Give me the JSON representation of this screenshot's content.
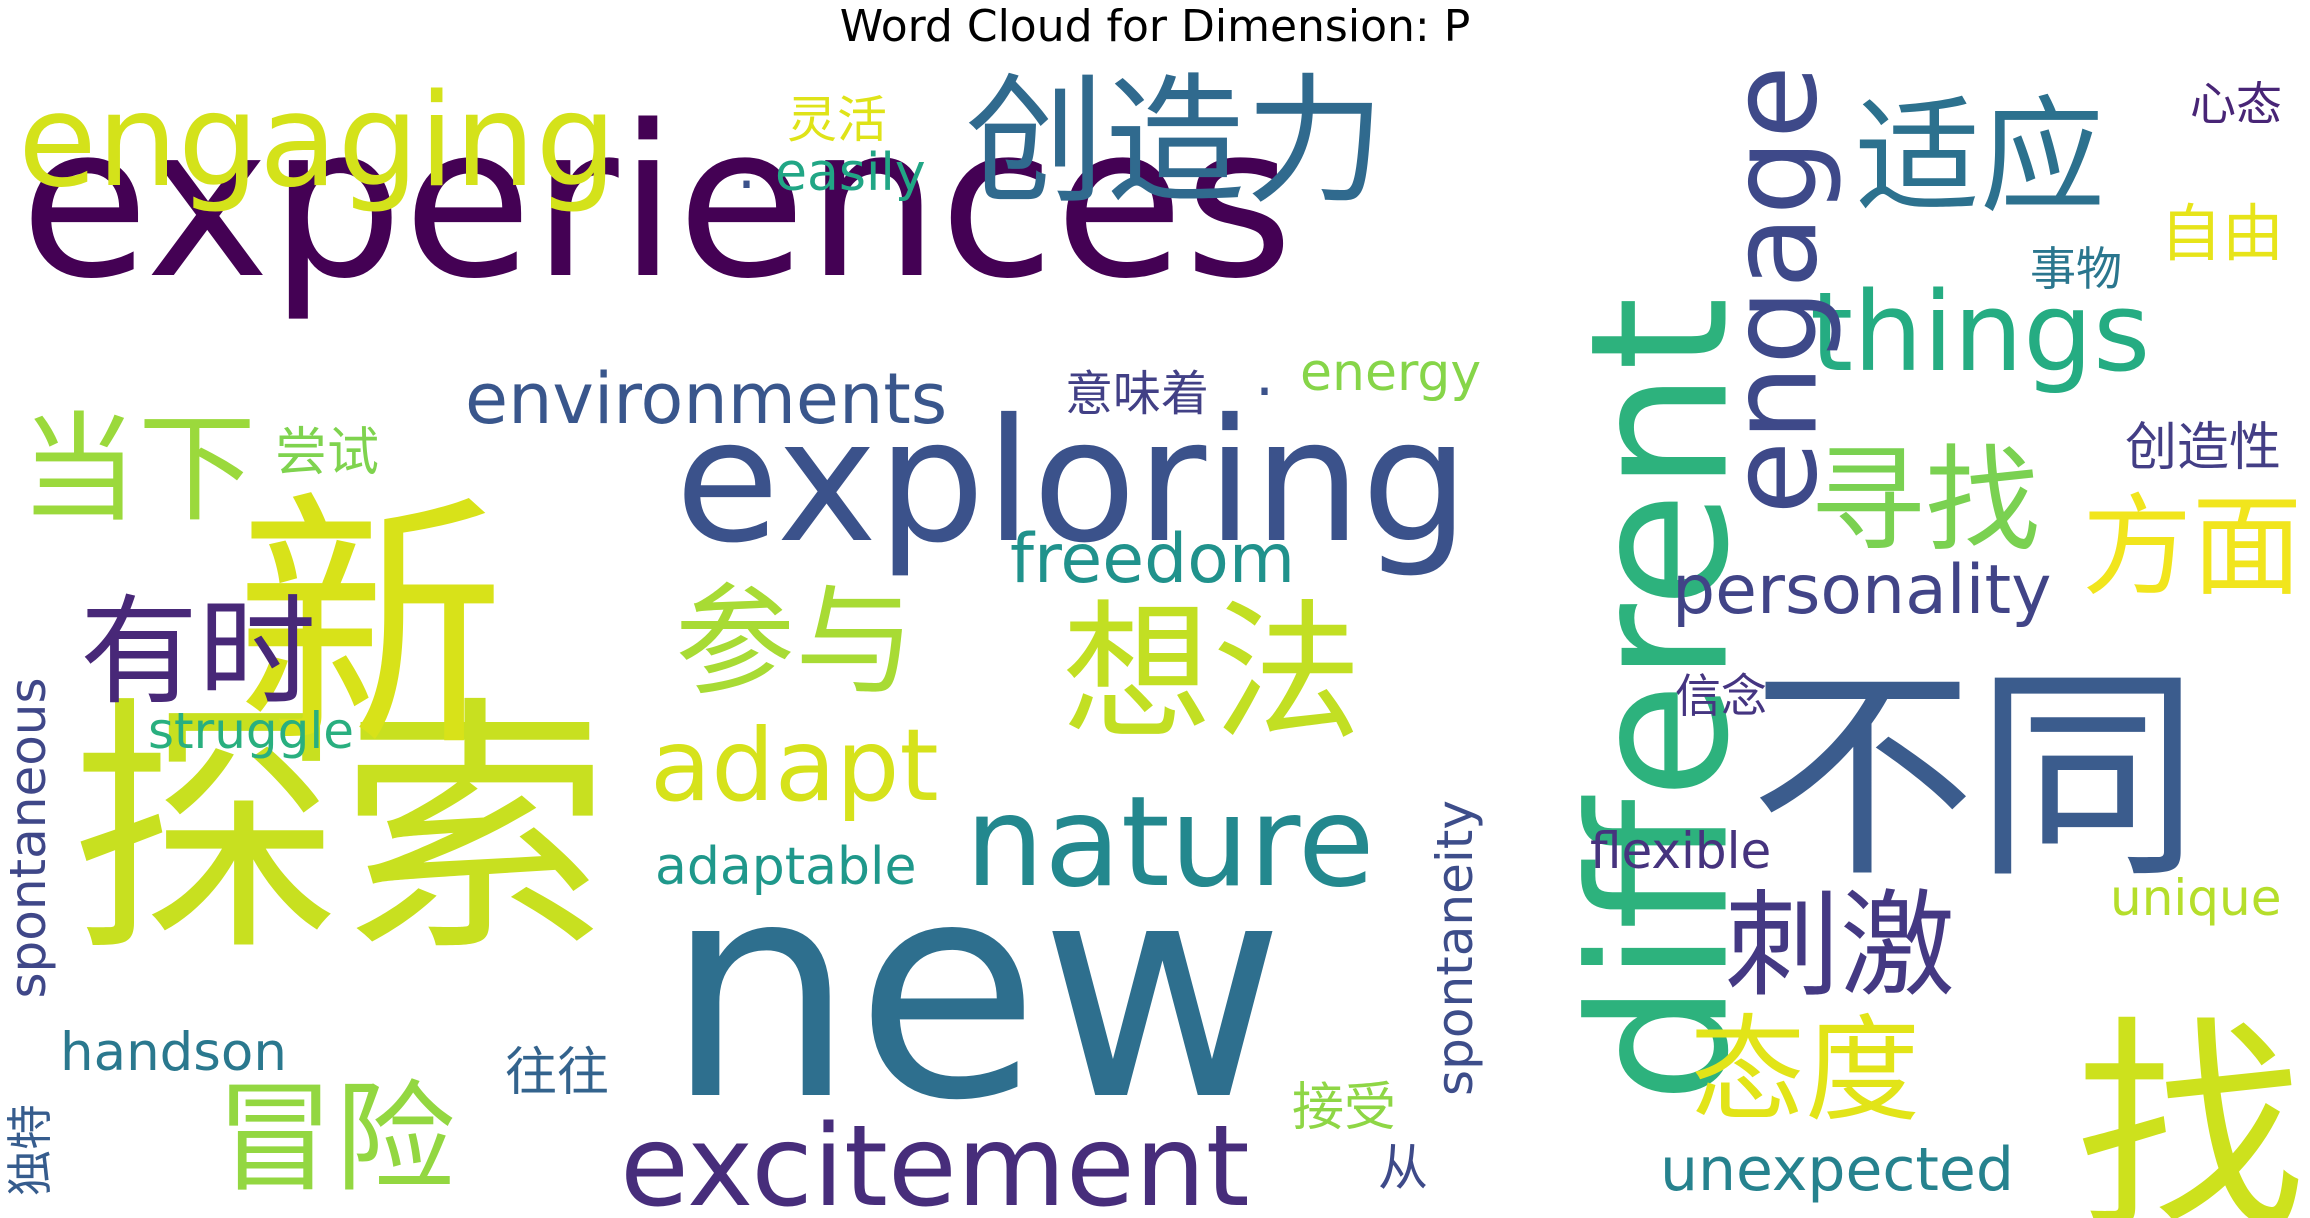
{
  "chart_data": {
    "type": "wordcloud",
    "title": "Word Cloud for Dimension: P",
    "words": [
      {
        "text": "experiences",
        "color": "#440154",
        "rotated": false
      },
      {
        "text": "new",
        "color": "#2e6f8e",
        "rotated": false
      },
      {
        "text": "different",
        "color": "#2db27d",
        "rotated": true
      },
      {
        "text": "探索",
        "color": "#c8e020",
        "rotated": false
      },
      {
        "text": "新",
        "color": "#d8e219",
        "rotated": false
      },
      {
        "text": "exploring",
        "color": "#3b528b",
        "rotated": false
      },
      {
        "text": "不同",
        "color": "#3b5c8d",
        "rotated": false
      },
      {
        "text": "engaging",
        "color": "#d4e21a",
        "rotated": false
      },
      {
        "text": "创造力",
        "color": "#306a8e",
        "rotated": false
      },
      {
        "text": "想法",
        "color": "#c2df23",
        "rotated": false
      },
      {
        "text": "things",
        "color": "#25ac82",
        "rotated": false
      },
      {
        "text": "nature",
        "color": "#23888e",
        "rotated": false
      },
      {
        "text": "excitement",
        "color": "#472d7b",
        "rotated": false
      },
      {
        "text": "engage",
        "color": "#3e4989",
        "rotated": true
      },
      {
        "text": "适应",
        "color": "#2c718e",
        "rotated": false
      },
      {
        "text": "参与",
        "color": "#a8db34",
        "rotated": false
      },
      {
        "text": "adapt",
        "color": "#d6e21b",
        "rotated": false
      },
      {
        "text": "寻找",
        "color": "#7ad151",
        "rotated": false
      },
      {
        "text": "刺激",
        "color": "#443983",
        "rotated": false
      },
      {
        "text": "冒险",
        "color": "#93d741",
        "rotated": false
      },
      {
        "text": "有时",
        "color": "#482878",
        "rotated": false
      },
      {
        "text": "当下",
        "color": "#9bd93c",
        "rotated": false
      },
      {
        "text": "态度",
        "color": "#e2e418",
        "rotated": false
      },
      {
        "text": "方面",
        "color": "#f1e51d",
        "rotated": false
      },
      {
        "text": "environments",
        "color": "#39568c",
        "rotated": false
      },
      {
        "text": "personality",
        "color": "#414487",
        "rotated": false
      },
      {
        "text": "freedom",
        "color": "#20928c",
        "rotated": false
      },
      {
        "text": "找",
        "color": "#cde11d",
        "rotated": false
      },
      {
        "text": "unexpected",
        "color": "#26828e",
        "rotated": false
      },
      {
        "text": "spontaneous",
        "color": "#3f4788",
        "rotated": true
      },
      {
        "text": "spontaneity",
        "color": "#3d4d8a",
        "rotated": true
      },
      {
        "text": "adaptable",
        "color": "#1f988b",
        "rotated": false
      },
      {
        "text": "struggle",
        "color": "#29af7f",
        "rotated": false
      },
      {
        "text": "handson",
        "color": "#2a788e",
        "rotated": false
      },
      {
        "text": "flexible",
        "color": "#46337e",
        "rotated": false
      },
      {
        "text": "unique",
        "color": "#b5de2b",
        "rotated": false
      },
      {
        "text": "easily",
        "color": "#21a685",
        "rotated": false
      },
      {
        "text": "energy",
        "color": "#86d549",
        "rotated": false
      },
      {
        "text": "自由",
        "color": "#e7e419",
        "rotated": false
      },
      {
        "text": "灵活",
        "color": "#dfe318",
        "rotated": false
      },
      {
        "text": "心态",
        "color": "#482576",
        "rotated": false
      },
      {
        "text": "事物",
        "color": "#2a768e",
        "rotated": false
      },
      {
        "text": "意味着",
        "color": "#424086",
        "rotated": false
      },
      {
        "text": "尝试",
        "color": "#7fd34e",
        "rotated": false
      },
      {
        "text": "创造性",
        "color": "#433e85",
        "rotated": false
      },
      {
        "text": "信念",
        "color": "#453581",
        "rotated": false
      },
      {
        "text": "往往",
        "color": "#33638d",
        "rotated": false
      },
      {
        "text": "接受",
        "color": "#8ed645",
        "rotated": false
      },
      {
        "text": "从",
        "color": "#3e4a89",
        "rotated": false
      },
      {
        "text": "独特",
        "color": "#365c8d",
        "rotated": true
      },
      {
        "text": ".",
        "color": "#3b528b",
        "rotated": false
      },
      {
        "text": ".",
        "color": "#3b528b",
        "rotated": false
      }
    ]
  }
}
